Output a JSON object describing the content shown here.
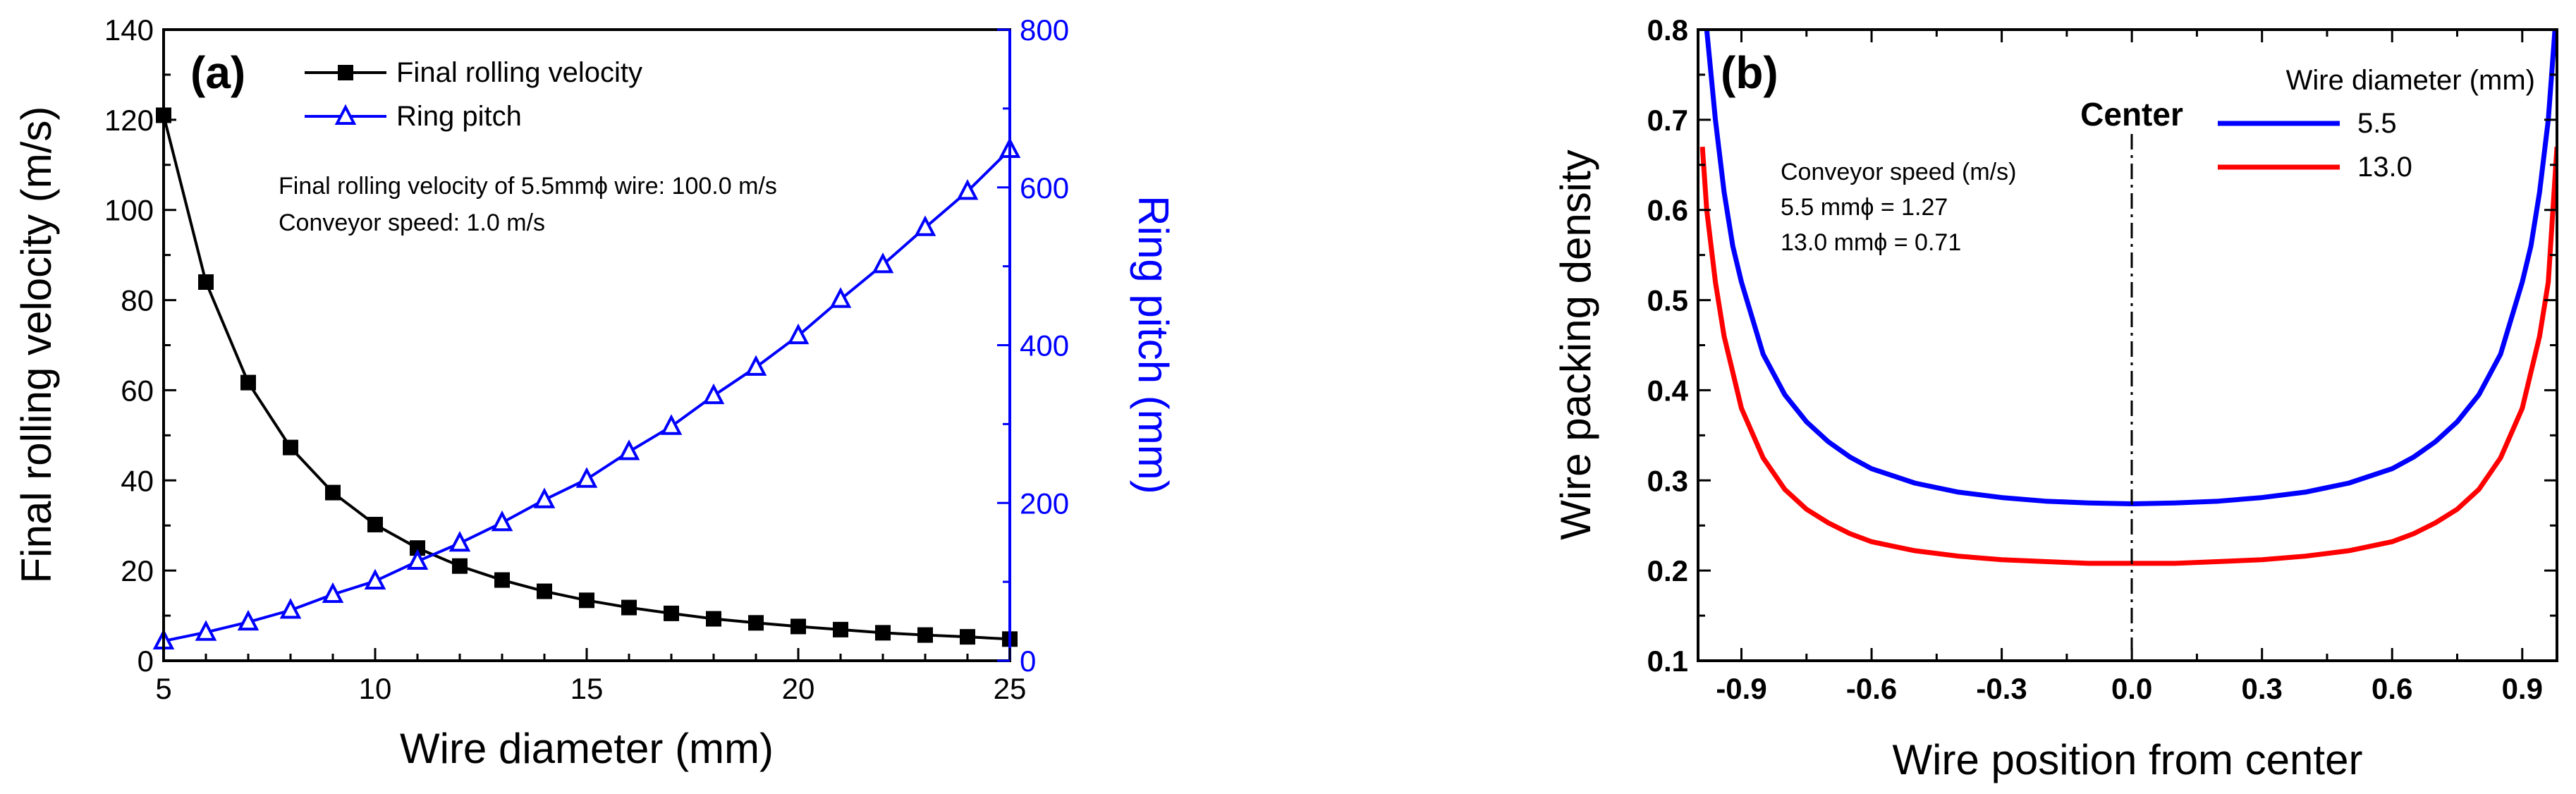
{
  "chart_data": [
    {
      "type": "line",
      "panel_label": "(a)",
      "xlabel": "Wire diameter (mm)",
      "ylabel": "Final rolling velocity (m/s)",
      "y2label": "Ring pitch (mm)",
      "xlim": [
        5,
        25
      ],
      "ylim": [
        0,
        140
      ],
      "y2lim": [
        0,
        800
      ],
      "x_ticks": [
        "5",
        "10",
        "15",
        "20",
        "25"
      ],
      "y_ticks": [
        "0",
        "20",
        "40",
        "60",
        "80",
        "100",
        "120",
        "140"
      ],
      "y2_ticks": [
        "0",
        "200",
        "400",
        "600",
        "800"
      ],
      "x": [
        5,
        6,
        7,
        8,
        9,
        10,
        11,
        12,
        13,
        14,
        15,
        16,
        17,
        18,
        19,
        20,
        21,
        22,
        23,
        24,
        25
      ],
      "series": [
        {
          "name": "Final rolling velocity",
          "axis": "left",
          "color": "#000000",
          "marker": "filled-square",
          "values": [
            121,
            84,
            61.7,
            47.3,
            37.3,
            30.2,
            25.0,
            21.0,
            17.9,
            15.4,
            13.4,
            11.8,
            10.5,
            9.3,
            8.4,
            7.6,
            6.9,
            6.2,
            5.7,
            5.3,
            4.8
          ]
        },
        {
          "name": "Ring pitch",
          "axis": "right",
          "color": "#0000ff",
          "marker": "open-triangle",
          "values": [
            25,
            36,
            49,
            64,
            84,
            101,
            126,
            149,
            175,
            204,
            230,
            265,
            297,
            336,
            372,
            412,
            458,
            502,
            549,
            595,
            648
          ]
        }
      ],
      "annotations": [
        "Final rolling velocity of 5.5mmϕ wire: 100.0 m/s",
        "Conveyor speed: 1.0 m/s"
      ],
      "legend": "top-center",
      "grid": false
    },
    {
      "type": "line",
      "panel_label": "(b)",
      "xlabel": "Wire position from center",
      "ylabel": "Wire packing density",
      "xlim": [
        -1.0,
        0.98
      ],
      "ylim": [
        0.1,
        0.8
      ],
      "x_ticks": [
        "-0.9",
        "-0.6",
        "-0.3",
        "0.0",
        "0.3",
        "0.6",
        "0.9"
      ],
      "y_ticks": [
        "0.1",
        "0.2",
        "0.3",
        "0.4",
        "0.5",
        "0.6",
        "0.7",
        "0.8"
      ],
      "x": [
        -0.99,
        -0.98,
        -0.96,
        -0.94,
        -0.92,
        -0.9,
        -0.85,
        -0.8,
        -0.75,
        -0.7,
        -0.65,
        -0.6,
        -0.5,
        -0.4,
        -0.3,
        -0.2,
        -0.1,
        0.0,
        0.1,
        0.2,
        0.3,
        0.4,
        0.5,
        0.6,
        0.65,
        0.7,
        0.75,
        0.8,
        0.85,
        0.9,
        0.92,
        0.94,
        0.96,
        0.98
      ],
      "legend_title": "Wire diameter (mm)",
      "legend": "top-right",
      "series": [
        {
          "name": "5.5",
          "color": "#0000ff",
          "values": [
            0.83,
            0.8,
            0.7,
            0.62,
            0.56,
            0.52,
            0.44,
            0.395,
            0.365,
            0.343,
            0.326,
            0.313,
            0.297,
            0.287,
            0.281,
            0.277,
            0.275,
            0.274,
            0.275,
            0.277,
            0.281,
            0.287,
            0.297,
            0.313,
            0.326,
            0.343,
            0.365,
            0.395,
            0.44,
            0.52,
            0.56,
            0.62,
            0.7,
            0.83
          ]
        },
        {
          "name": "13.0",
          "color": "#ff0000",
          "values": [
            0.67,
            0.6,
            0.52,
            0.46,
            0.42,
            0.38,
            0.325,
            0.29,
            0.268,
            0.253,
            0.241,
            0.232,
            0.222,
            0.216,
            0.212,
            0.21,
            0.208,
            0.208,
            0.208,
            0.21,
            0.212,
            0.216,
            0.222,
            0.232,
            0.241,
            0.253,
            0.268,
            0.29,
            0.325,
            0.38,
            0.42,
            0.46,
            0.52,
            0.67
          ]
        }
      ],
      "center_line": {
        "x": 0.0,
        "label": "Center"
      },
      "annotations": [
        "Conveyor speed (m/s)",
        "5.5 mmϕ = 1.27",
        "13.0 mmϕ = 0.71"
      ],
      "grid": false
    }
  ]
}
